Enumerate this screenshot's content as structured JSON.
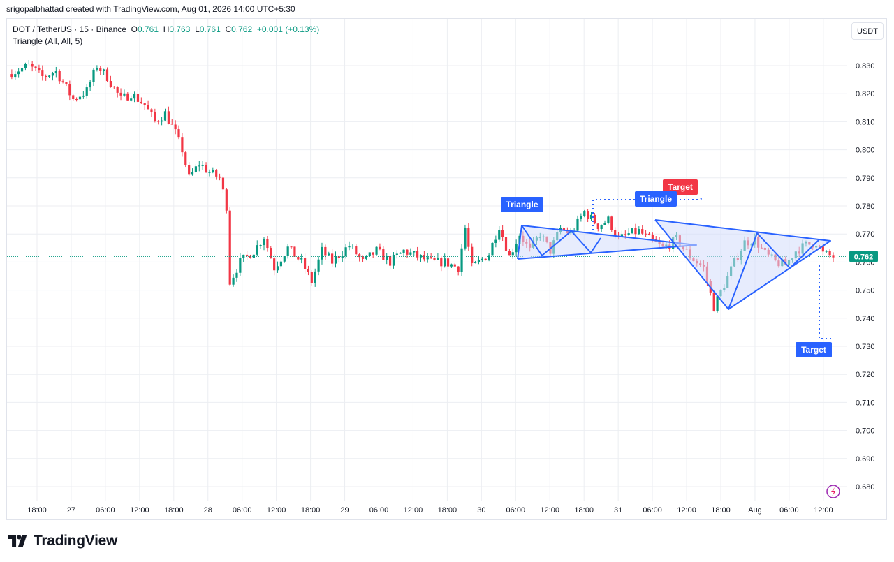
{
  "attribution": "srigopalbhattad created with TradingView.com, Aug 01, 2026 14:00 UTC+5:30",
  "legend": {
    "symbol": "DOT / TetherUS · 15 · Binance",
    "o_label": "O",
    "o": "0.761",
    "h_label": "H",
    "h": "0.763",
    "l_label": "L",
    "l": "0.761",
    "c_label": "C",
    "c": "0.762",
    "change": "+0.001 (+0.13%)",
    "indicator": "Triangle (All, All, 5)"
  },
  "currency": "USDT",
  "logo_text": "TradingView",
  "colors": {
    "up": "#089981",
    "down": "#f23645",
    "pattern": "#2962ff",
    "pattern_fill": "#d3dcfb",
    "target_red": "#f23645"
  },
  "chart_data": {
    "type": "candlestick",
    "ylim": [
      0.675,
      0.842
    ],
    "y_ticks": [
      "0.830",
      "0.820",
      "0.810",
      "0.800",
      "0.790",
      "0.780",
      "0.770",
      "0.760",
      "0.750",
      "0.740",
      "0.730",
      "0.720",
      "0.710",
      "0.700",
      "0.690",
      "0.680"
    ],
    "x_tick_labels": [
      "18:00",
      "27",
      "06:00",
      "12:00",
      "18:00",
      "28",
      "06:00",
      "12:00",
      "18:00",
      "29",
      "06:00",
      "12:00",
      "18:00",
      "30",
      "06:00",
      "12:00",
      "18:00",
      "31",
      "06:00",
      "12:00",
      "18:00",
      "Aug",
      "06:00",
      "12:00"
    ],
    "last_price": "0.762",
    "price_path": [
      [
        0,
        0.827
      ],
      [
        6,
        0.83
      ],
      [
        10,
        0.826
      ],
      [
        14,
        0.828
      ],
      [
        17,
        0.822
      ],
      [
        19,
        0.818
      ],
      [
        23,
        0.821
      ],
      [
        26,
        0.83
      ],
      [
        29,
        0.826
      ],
      [
        33,
        0.818
      ],
      [
        36,
        0.82
      ],
      [
        40,
        0.816
      ],
      [
        43,
        0.81
      ],
      [
        46,
        0.813
      ],
      [
        49,
        0.806
      ],
      [
        51,
        0.8
      ],
      [
        53,
        0.79
      ],
      [
        56,
        0.795
      ],
      [
        59,
        0.792
      ],
      [
        62,
        0.79
      ],
      [
        64,
        0.78
      ],
      [
        65,
        0.753
      ],
      [
        68,
        0.76
      ],
      [
        72,
        0.764
      ],
      [
        75,
        0.769
      ],
      [
        78,
        0.758
      ],
      [
        82,
        0.765
      ],
      [
        86,
        0.76
      ],
      [
        89,
        0.753
      ],
      [
        92,
        0.764
      ],
      [
        95,
        0.76
      ],
      [
        100,
        0.766
      ],
      [
        104,
        0.76
      ],
      [
        108,
        0.764
      ],
      [
        112,
        0.76
      ],
      [
        116,
        0.764
      ],
      [
        120,
        0.762
      ],
      [
        124,
        0.76
      ],
      [
        128,
        0.76
      ],
      [
        132,
        0.758
      ],
      [
        134,
        0.772
      ],
      [
        136,
        0.758
      ],
      [
        138,
        0.76
      ],
      [
        141,
        0.763
      ],
      [
        144,
        0.773
      ],
      [
        147,
        0.762
      ],
      [
        150,
        0.77
      ],
      [
        153,
        0.764
      ],
      [
        156,
        0.77
      ],
      [
        159,
        0.764
      ],
      [
        162,
        0.772
      ],
      [
        165,
        0.77
      ],
      [
        169,
        0.778
      ],
      [
        173,
        0.773
      ],
      [
        176,
        0.775
      ],
      [
        179,
        0.768
      ],
      [
        182,
        0.77
      ],
      [
        185,
        0.771
      ],
      [
        188,
        0.768
      ],
      [
        192,
        0.765
      ],
      [
        196,
        0.768
      ],
      [
        200,
        0.762
      ],
      [
        204,
        0.758
      ],
      [
        207,
        0.744
      ],
      [
        210,
        0.752
      ],
      [
        213,
        0.76
      ],
      [
        216,
        0.767
      ],
      [
        219,
        0.768
      ],
      [
        222,
        0.763
      ],
      [
        225,
        0.76
      ],
      [
        228,
        0.759
      ],
      [
        231,
        0.764
      ],
      [
        234,
        0.766
      ],
      [
        237,
        0.767
      ],
      [
        239,
        0.763
      ],
      [
        242,
        0.762
      ]
    ],
    "patterns": [
      {
        "label": "Triangle",
        "target": "Target"
      },
      {
        "label": "Triangle",
        "target": "Target"
      }
    ]
  }
}
